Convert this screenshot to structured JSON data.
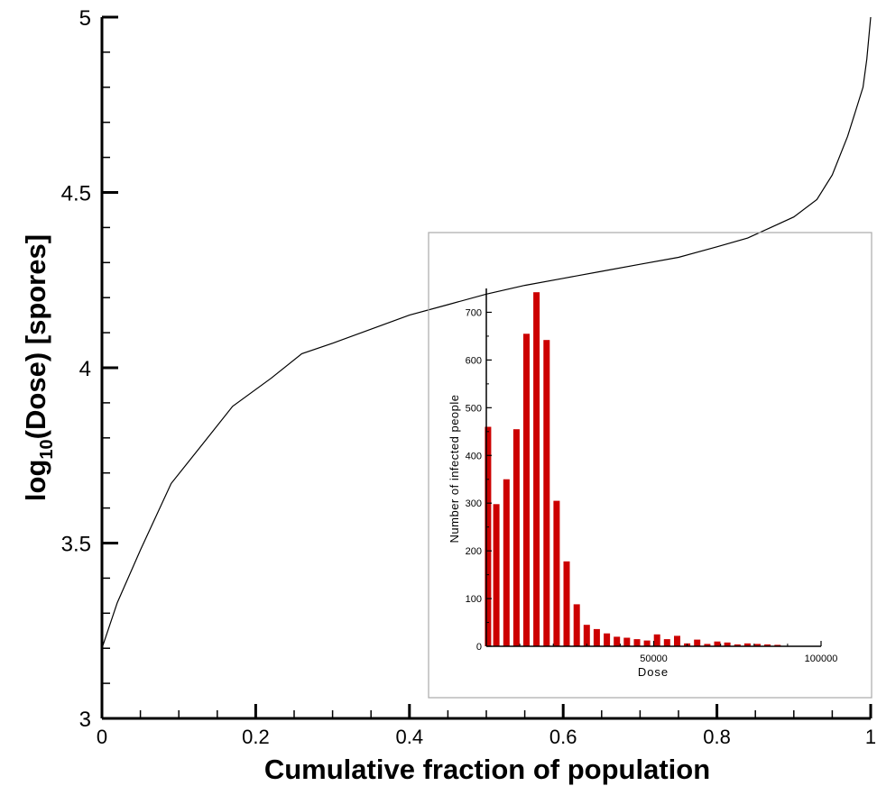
{
  "chart_data": [
    {
      "type": "line",
      "title": "",
      "xlabel": "Cumulative fraction of population",
      "ylabel_main": "log",
      "ylabel_sub": "10",
      "ylabel_rest": "(Dose) [spores]",
      "xlim": [
        0,
        1
      ],
      "ylim": [
        3,
        5
      ],
      "xticks": [
        0,
        0.2,
        0.4,
        0.6,
        0.8,
        1
      ],
      "xtick_labels": [
        "0",
        "0.2",
        "0.4",
        "0.6",
        "0.8",
        "1"
      ],
      "yticks": [
        3,
        3.5,
        4,
        4.5,
        5
      ],
      "ytick_labels": [
        "3",
        "3.5",
        "4",
        "4.5",
        "5"
      ],
      "grid": false,
      "series": [
        {
          "color": "#000000",
          "x": [
            0,
            0.02,
            0.05,
            0.09,
            0.13,
            0.17,
            0.22,
            0.26,
            0.3,
            0.35,
            0.4,
            0.45,
            0.5,
            0.55,
            0.6,
            0.65,
            0.7,
            0.75,
            0.8,
            0.84,
            0.87,
            0.9,
            0.93,
            0.95,
            0.97,
            0.98,
            0.99,
            0.995,
            1.0
          ],
          "y": [
            3.2,
            3.33,
            3.48,
            3.67,
            3.78,
            3.89,
            3.97,
            4.04,
            4.07,
            4.11,
            4.15,
            4.18,
            4.21,
            4.235,
            4.255,
            4.275,
            4.295,
            4.315,
            4.345,
            4.37,
            4.4,
            4.43,
            4.48,
            4.55,
            4.66,
            4.73,
            4.8,
            4.88,
            5.0
          ]
        }
      ]
    },
    {
      "type": "bar",
      "title": "",
      "xlabel": "Dose",
      "ylabel": "Number of infected people",
      "xlim": [
        0,
        100000
      ],
      "ylim": [
        0,
        750
      ],
      "xticks": [
        50000,
        100000
      ],
      "xtick_labels": [
        "50000",
        "100000"
      ],
      "yticks": [
        0,
        100,
        200,
        300,
        400,
        500,
        600,
        700
      ],
      "ytick_labels": [
        "0",
        "100",
        "200",
        "300",
        "400",
        "500",
        "600",
        "700"
      ],
      "bar_color": "#cc0000",
      "grid": false,
      "x": [
        500,
        3000,
        6000,
        9000,
        12000,
        15000,
        18000,
        21000,
        24000,
        27000,
        30000,
        33000,
        36000,
        39000,
        42000,
        45000,
        48000,
        51000,
        54000,
        57000,
        60000,
        63000,
        66000,
        69000,
        72000,
        75000,
        78000,
        81000,
        84000,
        87000
      ],
      "values": [
        460,
        298,
        350,
        455,
        655,
        742,
        642,
        305,
        178,
        88,
        45,
        36,
        27,
        20,
        18,
        15,
        12,
        25,
        15,
        22,
        6,
        14,
        5,
        10,
        8,
        4,
        6,
        5,
        4,
        3
      ]
    }
  ]
}
